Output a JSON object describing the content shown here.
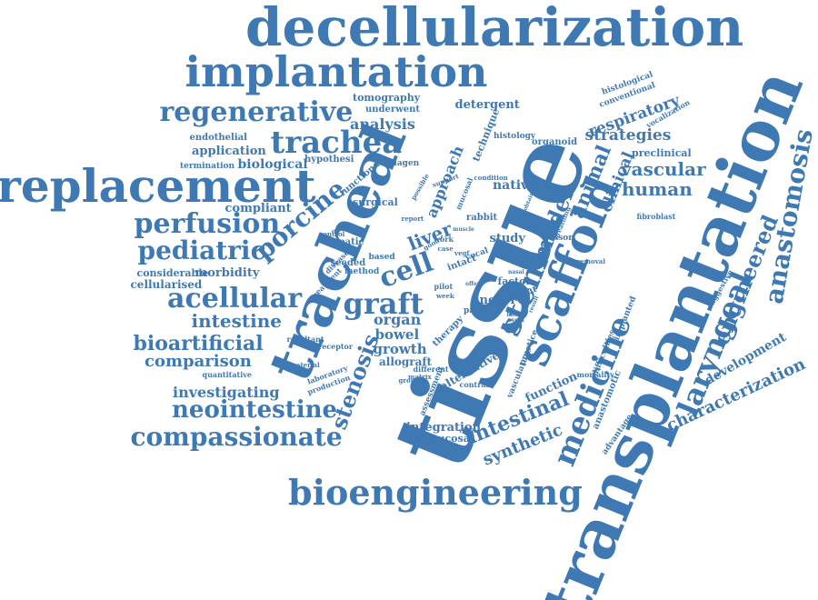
{
  "colors": {
    "word": "#3f79b3",
    "background": "#ffffff"
  },
  "words": [
    {
      "id": "decellularization",
      "text": "decellularization"
    },
    {
      "id": "implantation",
      "text": "implantation"
    },
    {
      "id": "replacement",
      "text": "replacement"
    },
    {
      "id": "tissue",
      "text": "tissue"
    },
    {
      "id": "transplantation",
      "text": "transplantation"
    },
    {
      "id": "tracheal",
      "text": "tracheal"
    },
    {
      "id": "scaffold",
      "text": "scaffold"
    },
    {
      "id": "bioengineering",
      "text": "bioengineering"
    },
    {
      "id": "regenerative",
      "text": "regenerative"
    },
    {
      "id": "trachea",
      "text": "trachea"
    },
    {
      "id": "perfusion",
      "text": "perfusion"
    },
    {
      "id": "pediatric",
      "text": "pediatric"
    },
    {
      "id": "acellular",
      "text": "acellular"
    },
    {
      "id": "compassionate",
      "text": "compassionate"
    },
    {
      "id": "neointestine",
      "text": "neointestine"
    },
    {
      "id": "bioartificial",
      "text": "bioartificial"
    },
    {
      "id": "porcine",
      "text": "porcine"
    },
    {
      "id": "graft",
      "text": "graft"
    },
    {
      "id": "cell",
      "text": "cell"
    },
    {
      "id": "stenosis",
      "text": "stenosis"
    },
    {
      "id": "stem",
      "text": "stem"
    },
    {
      "id": "medicine",
      "text": "medicine"
    },
    {
      "id": "laryngeal",
      "text": "laryngeal"
    },
    {
      "id": "anastomosis",
      "text": "anastomosis"
    },
    {
      "id": "engineered",
      "text": "engineered"
    },
    {
      "id": "intestine",
      "text": "intestine"
    },
    {
      "id": "comparison",
      "text": "comparison"
    },
    {
      "id": "investigating",
      "text": "investigating"
    },
    {
      "id": "characterization",
      "text": "characterization"
    },
    {
      "id": "development",
      "text": "development"
    },
    {
      "id": "respiratory",
      "text": "respiratory"
    },
    {
      "id": "strategies",
      "text": "strategies"
    },
    {
      "id": "vascular",
      "text": "vascular"
    },
    {
      "id": "human",
      "text": "human"
    },
    {
      "id": "animal",
      "text": "animal"
    },
    {
      "id": "clinical",
      "text": "clinical"
    },
    {
      "id": "model",
      "text": "model"
    },
    {
      "id": "intestinal",
      "text": "intestinal"
    },
    {
      "id": "synthetic",
      "text": "synthetic"
    },
    {
      "id": "analysis",
      "text": "analysis"
    },
    {
      "id": "application",
      "text": "application"
    },
    {
      "id": "biological",
      "text": "biological"
    },
    {
      "id": "compliant",
      "text": "compliant"
    },
    {
      "id": "morbidity",
      "text": "morbidity"
    },
    {
      "id": "considerable",
      "text": "considerable"
    },
    {
      "id": "cellularised",
      "text": "cellularised"
    },
    {
      "id": "organ",
      "text": "organ"
    },
    {
      "id": "bowel",
      "text": "bowel"
    },
    {
      "id": "growth",
      "text": "growth"
    },
    {
      "id": "allograft",
      "text": "allograft"
    },
    {
      "id": "liver",
      "text": "liver"
    },
    {
      "id": "approach",
      "text": "approach"
    },
    {
      "id": "native",
      "text": "native"
    },
    {
      "id": "study",
      "text": "study"
    },
    {
      "id": "novel",
      "text": "novel"
    },
    {
      "id": "integration",
      "text": "integration"
    },
    {
      "id": "neomucosa",
      "text": "neomucosa"
    },
    {
      "id": "alternative",
      "text": "alternative"
    },
    {
      "id": "function",
      "text": "function"
    },
    {
      "id": "tomography",
      "text": "tomography"
    },
    {
      "id": "underwent",
      "text": "underwent"
    },
    {
      "id": "detergent",
      "text": "detergent"
    },
    {
      "id": "technique",
      "text": "technique"
    },
    {
      "id": "endothelial",
      "text": "endothelial"
    },
    {
      "id": "termination",
      "text": "termination"
    },
    {
      "id": "hypothesi",
      "text": "hypothesi"
    },
    {
      "id": "collagen",
      "text": "collagen"
    },
    {
      "id": "histology",
      "text": "histology"
    },
    {
      "id": "organoid",
      "text": "organoid"
    },
    {
      "id": "preclinical",
      "text": "preclinical"
    },
    {
      "id": "histological",
      "text": "histological"
    },
    {
      "id": "conventional",
      "text": "conventional"
    },
    {
      "id": "vocalization",
      "text": "vocalization"
    },
    {
      "id": "fibroblast",
      "text": "fibroblast"
    },
    {
      "id": "suggestive",
      "text": "suggestive"
    },
    {
      "id": "surgical",
      "text": "surgical"
    },
    {
      "id": "functional",
      "text": "functional"
    },
    {
      "id": "hepatic",
      "text": "hepatic"
    },
    {
      "id": "seeded",
      "text": "seeded"
    },
    {
      "id": "method",
      "text": "method"
    },
    {
      "id": "rabbit",
      "text": "rabbit"
    },
    {
      "id": "factor",
      "text": "factor"
    },
    {
      "id": "upper",
      "text": "upper"
    },
    {
      "id": "patient",
      "text": "patient"
    },
    {
      "id": "therapy",
      "text": "therapy"
    },
    {
      "id": "vasculature",
      "text": "vasculature"
    },
    {
      "id": "practice",
      "text": "practice"
    },
    {
      "id": "implanted",
      "text": "implanted"
    },
    {
      "id": "difficulties",
      "text": "difficulties"
    },
    {
      "id": "mortality",
      "text": "mortality"
    },
    {
      "id": "anastomotic",
      "text": "anastomotic"
    },
    {
      "id": "advantage",
      "text": "advantage"
    },
    {
      "id": "assessment",
      "text": "assessment"
    },
    {
      "id": "contrast",
      "text": "contrast"
    },
    {
      "id": "resultant",
      "text": "resultant"
    },
    {
      "id": "receptor",
      "text": "receptor"
    },
    {
      "id": "quantitative",
      "text": "quantitative"
    },
    {
      "id": "laboratory",
      "text": "laboratory"
    },
    {
      "id": "production",
      "text": "production"
    },
    {
      "id": "different",
      "text": "different"
    },
    {
      "id": "treatment",
      "text": "treatment"
    },
    {
      "id": "disease",
      "text": "disease"
    },
    {
      "id": "control",
      "text": "control"
    },
    {
      "id": "condition",
      "text": "condition"
    },
    {
      "id": "negative",
      "text": "negative"
    },
    {
      "id": "removal",
      "text": "removal"
    },
    {
      "id": "lesson",
      "text": "lesson"
    },
    {
      "id": "month",
      "text": "month"
    },
    {
      "id": "pilot",
      "text": "pilot"
    },
    {
      "id": "week",
      "text": "week"
    },
    {
      "id": "intact",
      "text": "intact"
    },
    {
      "id": "vocal",
      "text": "vocal"
    },
    {
      "id": "work",
      "text": "work"
    },
    {
      "id": "case",
      "text": "case"
    },
    {
      "id": "based",
      "text": "based"
    },
    {
      "id": "report",
      "text": "report"
    },
    {
      "id": "whole",
      "text": "whole"
    },
    {
      "id": "breathing",
      "text": "breathing"
    },
    {
      "id": "mucosal",
      "text": "mucosal"
    },
    {
      "id": "support",
      "text": "support"
    },
    {
      "id": "possible",
      "text": "possible"
    },
    {
      "id": "material",
      "text": "material"
    },
    {
      "id": "matrix",
      "text": "matrix"
    },
    {
      "id": "group",
      "text": "group"
    },
    {
      "id": "result",
      "text": "result"
    },
    {
      "id": "basis",
      "text": "basis"
    },
    {
      "id": "event",
      "text": "event"
    },
    {
      "id": "vegf",
      "text": "vegf"
    },
    {
      "id": "good",
      "text": "good"
    },
    {
      "id": "option",
      "text": "option"
    },
    {
      "id": "viable",
      "text": "viable"
    },
    {
      "id": "offer",
      "text": "offer"
    },
    {
      "id": "obtained",
      "text": "obtained"
    },
    {
      "id": "muscle",
      "text": "muscle"
    },
    {
      "id": "nasal",
      "text": "nasal"
    }
  ]
}
